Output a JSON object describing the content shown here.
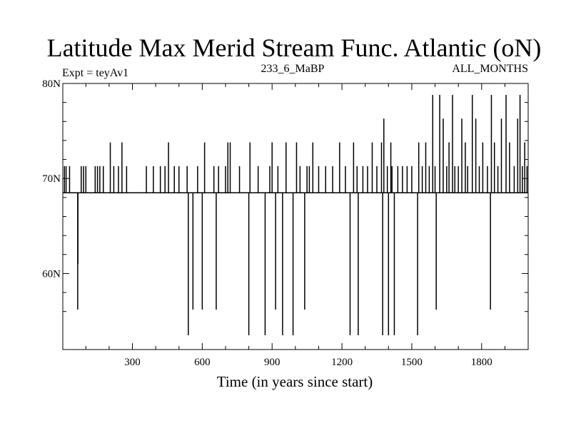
{
  "chart_data": {
    "type": "line",
    "title": "Latitude Max Merid Stream Func. Atlantic (oN)",
    "subtitle_left": "Expt = teyAv1",
    "subtitle_center": "233_6_MaBP",
    "subtitle_right": "ALL_MONTHS",
    "xlabel": "Time (in years since start)",
    "ylabel": "",
    "xlim": [
      1,
      2000
    ],
    "ylim": [
      52,
      80
    ],
    "x_ticks": [
      300,
      600,
      900,
      1200,
      1500,
      1800
    ],
    "x_tick_labels": [
      "300",
      "600",
      "900",
      "1200",
      "1500",
      "1800"
    ],
    "y_ticks": [
      60,
      70,
      80
    ],
    "y_tick_labels": [
      "60N",
      "70N",
      "80N"
    ],
    "y_minor_ticks": [
      56,
      58,
      62,
      64,
      66,
      68,
      72,
      74,
      76,
      78
    ],
    "baseline": 68.5,
    "grid": false,
    "legend": "none",
    "line_color": "#000000",
    "series": [
      {
        "spikes": [
          [
            8,
            71.3
          ],
          [
            15,
            71.3
          ],
          [
            30,
            71.3
          ],
          [
            65,
            56.2
          ],
          [
            66,
            61
          ],
          [
            80,
            71.3
          ],
          [
            90,
            71.3
          ],
          [
            100,
            71.3
          ],
          [
            140,
            71.3
          ],
          [
            150,
            71.3
          ],
          [
            160,
            71.3
          ],
          [
            175,
            71.3
          ],
          [
            205,
            73.8
          ],
          [
            220,
            71.3
          ],
          [
            240,
            71.3
          ],
          [
            255,
            73.8
          ],
          [
            275,
            71.3
          ],
          [
            360,
            71.3
          ],
          [
            390,
            71.3
          ],
          [
            420,
            71.3
          ],
          [
            440,
            71.3
          ],
          [
            455,
            73.8
          ],
          [
            480,
            71.3
          ],
          [
            500,
            71.3
          ],
          [
            535,
            71.3
          ],
          [
            540,
            53.5
          ],
          [
            560,
            56.2
          ],
          [
            580,
            71.3
          ],
          [
            600,
            56.2
          ],
          [
            610,
            73.8
          ],
          [
            650,
            71.3
          ],
          [
            660,
            56.2
          ],
          [
            670,
            71.3
          ],
          [
            700,
            71.3
          ],
          [
            710,
            73.8
          ],
          [
            720,
            73.8
          ],
          [
            760,
            71.3
          ],
          [
            800,
            53.5
          ],
          [
            805,
            73.8
          ],
          [
            840,
            71.3
          ],
          [
            870,
            53.5
          ],
          [
            890,
            71.3
          ],
          [
            900,
            73.8
          ],
          [
            915,
            56.2
          ],
          [
            925,
            71.3
          ],
          [
            945,
            53.5
          ],
          [
            960,
            73.8
          ],
          [
            990,
            53.5
          ],
          [
            1005,
            73.8
          ],
          [
            1020,
            71.3
          ],
          [
            1040,
            56.2
          ],
          [
            1050,
            71.3
          ],
          [
            1060,
            71.3
          ],
          [
            1075,
            73.8
          ],
          [
            1100,
            71.3
          ],
          [
            1130,
            71.3
          ],
          [
            1160,
            71.3
          ],
          [
            1190,
            73.8
          ],
          [
            1215,
            71.3
          ],
          [
            1235,
            53.5
          ],
          [
            1250,
            73.8
          ],
          [
            1265,
            71.3
          ],
          [
            1270,
            53.5
          ],
          [
            1290,
            71.3
          ],
          [
            1310,
            71.3
          ],
          [
            1330,
            73.8
          ],
          [
            1350,
            71.3
          ],
          [
            1370,
            73.8
          ],
          [
            1375,
            53.5
          ],
          [
            1380,
            76.3
          ],
          [
            1395,
            71.3
          ],
          [
            1400,
            53.5
          ],
          [
            1410,
            73.8
          ],
          [
            1415,
            71.3
          ],
          [
            1425,
            53.5
          ],
          [
            1440,
            71.3
          ],
          [
            1460,
            71.3
          ],
          [
            1480,
            71.3
          ],
          [
            1500,
            71.3
          ],
          [
            1525,
            53.5
          ],
          [
            1530,
            73.8
          ],
          [
            1545,
            71.3
          ],
          [
            1560,
            73.8
          ],
          [
            1575,
            71.3
          ],
          [
            1590,
            78.8
          ],
          [
            1600,
            71.3
          ],
          [
            1605,
            56.2
          ],
          [
            1620,
            78.8
          ],
          [
            1635,
            76.3
          ],
          [
            1650,
            71.3
          ],
          [
            1660,
            73.8
          ],
          [
            1675,
            78.8
          ],
          [
            1685,
            71.3
          ],
          [
            1700,
            71.3
          ],
          [
            1715,
            76.3
          ],
          [
            1730,
            73.8
          ],
          [
            1740,
            71.3
          ],
          [
            1760,
            78.8
          ],
          [
            1775,
            76.3
          ],
          [
            1790,
            71.3
          ],
          [
            1805,
            73.8
          ],
          [
            1825,
            71.3
          ],
          [
            1838,
            56.2
          ],
          [
            1842,
            78.8
          ],
          [
            1855,
            73.8
          ],
          [
            1870,
            71.3
          ],
          [
            1885,
            76.3
          ],
          [
            1905,
            78.8
          ],
          [
            1920,
            73.8
          ],
          [
            1940,
            71.3
          ],
          [
            1955,
            76.3
          ],
          [
            1965,
            78.8
          ],
          [
            1975,
            71.3
          ],
          [
            1985,
            73.8
          ],
          [
            1995,
            71.3
          ]
        ]
      }
    ]
  }
}
